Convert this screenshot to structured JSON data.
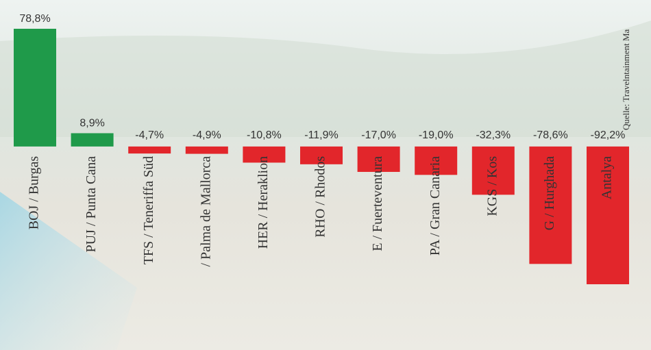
{
  "chart_data": {
    "type": "bar",
    "categories": [
      "BOJ / Burgas",
      "PUJ / Punta Cana",
      "TFS / Teneriffa Süd",
      "/ Palma de Mallorca",
      "HER / Heraklion",
      "RHO / Rhodos",
      "E / Fuerteventura",
      "PA / Gran Canaria",
      "KGS / Kos",
      "G / Hurghada",
      "Antalya"
    ],
    "values": [
      78.8,
      8.9,
      -4.7,
      -4.9,
      -10.8,
      -11.9,
      -17.0,
      -19.0,
      -32.3,
      -78.6,
      -92.2
    ],
    "value_labels": [
      "78,8%",
      "8,9%",
      "-4,7%",
      "-4,9%",
      "-10,8%",
      "-11,9%",
      "-17,0%",
      "-19,0%",
      "-32,3%",
      "-78,6%",
      "-92,2%"
    ],
    "positive_color": "#1f9a4a",
    "negative_color": "#e2262b",
    "source": "Quelle: Travelntainment Ma"
  }
}
